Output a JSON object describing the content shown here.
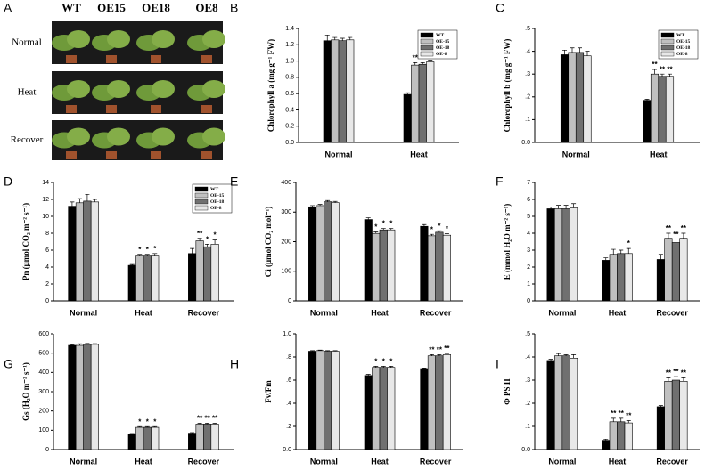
{
  "chart_data": [
    {
      "type": "photo",
      "panel_label": "A",
      "columns": [
        "WT",
        "OE15",
        "OE18",
        "OE8"
      ],
      "rows": [
        "Normal",
        "Heat",
        "Recover"
      ]
    },
    {
      "type": "bar",
      "panel_label": "B",
      "ylabel": "Chlorophyll a (mg g⁻¹ FW)",
      "categories": [
        "Normal",
        "Heat"
      ],
      "ylim": [
        0,
        1.4
      ],
      "yticks": [
        {
          "value": 0,
          "label": "0.0"
        },
        0.2,
        0.4,
        0.6,
        0.8,
        {
          "value": 1,
          "label": "1.0"
        },
        1.2,
        1.4
      ],
      "legend": "upper right",
      "series": [
        {
          "name": "WT",
          "color": "#000000",
          "values": [
            1.25,
            0.59
          ],
          "errors": [
            0.07,
            0.02
          ],
          "labels": [
            null,
            null
          ]
        },
        {
          "name": "OE-15",
          "color": "#c0c0c0",
          "values": [
            1.26,
            0.95
          ],
          "errors": [
            0.03,
            0.03
          ],
          "labels": [
            null,
            "**"
          ]
        },
        {
          "name": "OE-18",
          "color": "#707070",
          "values": [
            1.25,
            0.96
          ],
          "errors": [
            0.03,
            0.02
          ],
          "labels": [
            null,
            "**"
          ]
        },
        {
          "name": "OE-8",
          "color": "#e8e8e8",
          "values": [
            1.26,
            0.99
          ],
          "errors": [
            0.03,
            0.02
          ],
          "labels": [
            null,
            "**"
          ]
        }
      ]
    },
    {
      "type": "bar",
      "panel_label": "C",
      "ylabel": "Chlorophyll b (mg g⁻¹ FW)",
      "categories": [
        "Normal",
        "Heat"
      ],
      "ylim": [
        0,
        0.5
      ],
      "yticks": [
        {
          "value": 0,
          "label": "0.0"
        },
        {
          "value": 0.1,
          "label": ".1"
        },
        {
          "value": 0.2,
          "label": ".2"
        },
        {
          "value": 0.3,
          "label": ".3"
        },
        {
          "value": 0.4,
          "label": ".4"
        },
        {
          "value": 0.5,
          "label": ".5"
        }
      ],
      "legend": "upper right",
      "series": [
        {
          "name": "WT",
          "color": "#000000",
          "values": [
            0.385,
            0.185
          ],
          "errors": [
            0.02,
            0.005
          ],
          "labels": [
            null,
            null
          ]
        },
        {
          "name": "OE-15",
          "color": "#c0c0c0",
          "values": [
            0.395,
            0.3
          ],
          "errors": [
            0.02,
            0.02
          ],
          "labels": [
            null,
            "**"
          ]
        },
        {
          "name": "OE-18",
          "color": "#707070",
          "values": [
            0.395,
            0.29
          ],
          "errors": [
            0.02,
            0.01
          ],
          "labels": [
            null,
            "**"
          ]
        },
        {
          "name": "OE-8",
          "color": "#e8e8e8",
          "values": [
            0.38,
            0.29
          ],
          "errors": [
            0.02,
            0.01
          ],
          "labels": [
            null,
            "**"
          ]
        }
      ]
    },
    {
      "type": "bar",
      "panel_label": "D",
      "ylabel": "Pn (μmol CO₂ m⁻² s⁻¹)",
      "categories": [
        "Normal",
        "Heat",
        "Recover"
      ],
      "ylim": [
        0,
        14
      ],
      "yticks": [
        0,
        2,
        4,
        6,
        8,
        10,
        12,
        14
      ],
      "legend": "upper right",
      "series": [
        {
          "name": "WT",
          "color": "#000000",
          "values": [
            11.2,
            4.2,
            5.6
          ],
          "errors": [
            0.5,
            0.1,
            0.6
          ],
          "labels": [
            null,
            null,
            null
          ]
        },
        {
          "name": "OE-15",
          "color": "#c0c0c0",
          "values": [
            11.6,
            5.3,
            7.1
          ],
          "errors": [
            0.5,
            0.2,
            0.3
          ],
          "labels": [
            null,
            "*",
            "**"
          ]
        },
        {
          "name": "OE-18",
          "color": "#707070",
          "values": [
            11.8,
            5.3,
            6.4
          ],
          "errors": [
            0.8,
            0.2,
            0.3
          ],
          "labels": [
            null,
            "*",
            "*"
          ]
        },
        {
          "name": "OE-8",
          "color": "#e8e8e8",
          "values": [
            11.7,
            5.3,
            6.7
          ],
          "errors": [
            0.3,
            0.3,
            0.5
          ],
          "labels": [
            null,
            "*",
            "*"
          ]
        }
      ]
    },
    {
      "type": "bar",
      "panel_label": "E",
      "ylabel": "Ci (μmol CO₂ mol⁻¹)",
      "categories": [
        "Normal",
        "Heat",
        "Recover"
      ],
      "ylim": [
        0,
        400
      ],
      "yticks": [
        0,
        100,
        200,
        300,
        400
      ],
      "series": [
        {
          "name": "WT",
          "color": "#000000",
          "values": [
            318,
            275,
            252
          ],
          "errors": [
            4,
            6,
            6
          ],
          "labels": [
            null,
            null,
            null
          ]
        },
        {
          "name": "OE-15",
          "color": "#c0c0c0",
          "values": [
            322,
            228,
            220
          ],
          "errors": [
            4,
            5,
            5
          ],
          "labels": [
            null,
            "*",
            "*"
          ]
        },
        {
          "name": "OE-18",
          "color": "#707070",
          "values": [
            335,
            240,
            232
          ],
          "errors": [
            4,
            5,
            5
          ],
          "labels": [
            null,
            "*",
            "*"
          ]
        },
        {
          "name": "OE-8",
          "color": "#e8e8e8",
          "values": [
            332,
            240,
            222
          ],
          "errors": [
            4,
            5,
            5
          ],
          "labels": [
            null,
            "*",
            "*"
          ]
        }
      ]
    },
    {
      "type": "bar",
      "panel_label": "F",
      "ylabel": "E (mmol H₂O m⁻² s⁻¹)",
      "categories": [
        "Normal",
        "Heat",
        "Recover"
      ],
      "ylim": [
        0,
        7
      ],
      "yticks": [
        0,
        1,
        2,
        3,
        4,
        5,
        6,
        7
      ],
      "series": [
        {
          "name": "WT",
          "color": "#000000",
          "values": [
            5.45,
            2.4,
            2.45
          ],
          "errors": [
            0.1,
            0.15,
            0.3
          ],
          "labels": [
            null,
            null,
            null
          ]
        },
        {
          "name": "OE-15",
          "color": "#c0c0c0",
          "values": [
            5.45,
            2.75,
            3.7
          ],
          "errors": [
            0.2,
            0.3,
            0.3
          ],
          "labels": [
            null,
            null,
            "**"
          ]
        },
        {
          "name": "OE-18",
          "color": "#707070",
          "values": [
            5.45,
            2.8,
            3.45
          ],
          "errors": [
            0.2,
            0.2,
            0.2
          ],
          "labels": [
            null,
            null,
            "**"
          ]
        },
        {
          "name": "OE-8",
          "color": "#e8e8e8",
          "values": [
            5.5,
            2.8,
            3.7
          ],
          "errors": [
            0.25,
            0.3,
            0.3
          ],
          "labels": [
            null,
            "*",
            "**"
          ]
        }
      ]
    },
    {
      "type": "bar",
      "panel_label": "G",
      "ylabel": "Gs (H₂O m⁻² s⁻¹)",
      "categories": [
        "Normal",
        "Heat",
        "Recover"
      ],
      "ylim": [
        0,
        600
      ],
      "yticks": [
        0,
        100,
        200,
        300,
        400,
        500,
        600
      ],
      "series": [
        {
          "name": "WT",
          "color": "#000000",
          "values": [
            540,
            80,
            85
          ],
          "errors": [
            4,
            3,
            3
          ],
          "labels": [
            null,
            null,
            null
          ]
        },
        {
          "name": "OE-15",
          "color": "#c0c0c0",
          "values": [
            540,
            115,
            132
          ],
          "errors": [
            8,
            4,
            4
          ],
          "labels": [
            null,
            "*",
            "**"
          ]
        },
        {
          "name": "OE-18",
          "color": "#707070",
          "values": [
            545,
            115,
            132
          ],
          "errors": [
            5,
            4,
            4
          ],
          "labels": [
            null,
            "*",
            "**"
          ]
        },
        {
          "name": "OE-8",
          "color": "#e8e8e8",
          "values": [
            545,
            115,
            132
          ],
          "errors": [
            4,
            4,
            4
          ],
          "labels": [
            null,
            "*",
            "**"
          ]
        }
      ]
    },
    {
      "type": "bar",
      "panel_label": "H",
      "ylabel": "Fv/Fm",
      "categories": [
        "Normal",
        "Heat",
        "Recover"
      ],
      "ylim": [
        0,
        1
      ],
      "yticks": [
        {
          "value": 0,
          "label": "0.0"
        },
        {
          "value": 0.2,
          "label": ".2"
        },
        {
          "value": 0.4,
          "label": ".4"
        },
        {
          "value": 0.6,
          "label": ".6"
        },
        {
          "value": 0.8,
          "label": ".8"
        },
        {
          "value": 1,
          "label": "1.0"
        }
      ],
      "series": [
        {
          "name": "WT",
          "color": "#000000",
          "values": [
            0.85,
            0.64,
            0.7
          ],
          "errors": [
            0.005,
            0.01,
            0.005
          ],
          "labels": [
            null,
            null,
            null
          ]
        },
        {
          "name": "OE-15",
          "color": "#c0c0c0",
          "values": [
            0.855,
            0.71,
            0.81
          ],
          "errors": [
            0.005,
            0.01,
            0.01
          ],
          "labels": [
            null,
            "*",
            "**"
          ]
        },
        {
          "name": "OE-18",
          "color": "#707070",
          "values": [
            0.85,
            0.71,
            0.81
          ],
          "errors": [
            0.005,
            0.01,
            0.01
          ],
          "labels": [
            null,
            "*",
            "**"
          ]
        },
        {
          "name": "OE-8",
          "color": "#e8e8e8",
          "values": [
            0.85,
            0.71,
            0.82
          ],
          "errors": [
            0.005,
            0.01,
            0.01
          ],
          "labels": [
            null,
            "*",
            "**"
          ]
        }
      ]
    },
    {
      "type": "bar",
      "panel_label": "I",
      "ylabel": "Φ PS II",
      "categories": [
        "Normal",
        "Heat",
        "Recover"
      ],
      "ylim": [
        0,
        0.5
      ],
      "yticks": [
        {
          "value": 0,
          "label": "0.0"
        },
        {
          "value": 0.1,
          "label": ".1"
        },
        {
          "value": 0.2,
          "label": ".2"
        },
        {
          "value": 0.3,
          "label": ".3"
        },
        {
          "value": 0.4,
          "label": ".4"
        },
        {
          "value": 0.5,
          "label": ".5"
        }
      ],
      "series": [
        {
          "name": "WT",
          "color": "#000000",
          "values": [
            0.385,
            0.04,
            0.185
          ],
          "errors": [
            0.005,
            0.005,
            0.005
          ],
          "labels": [
            null,
            null,
            null
          ]
        },
        {
          "name": "OE-15",
          "color": "#c0c0c0",
          "values": [
            0.405,
            0.12,
            0.295
          ],
          "errors": [
            0.01,
            0.015,
            0.015
          ],
          "labels": [
            null,
            "**",
            "**"
          ]
        },
        {
          "name": "OE-18",
          "color": "#707070",
          "values": [
            0.405,
            0.12,
            0.3
          ],
          "errors": [
            0.005,
            0.015,
            0.015
          ],
          "labels": [
            null,
            "**",
            "**"
          ]
        },
        {
          "name": "OE-8",
          "color": "#e8e8e8",
          "values": [
            0.395,
            0.115,
            0.295
          ],
          "errors": [
            0.015,
            0.01,
            0.015
          ],
          "labels": [
            null,
            "**",
            "**"
          ]
        }
      ]
    }
  ]
}
